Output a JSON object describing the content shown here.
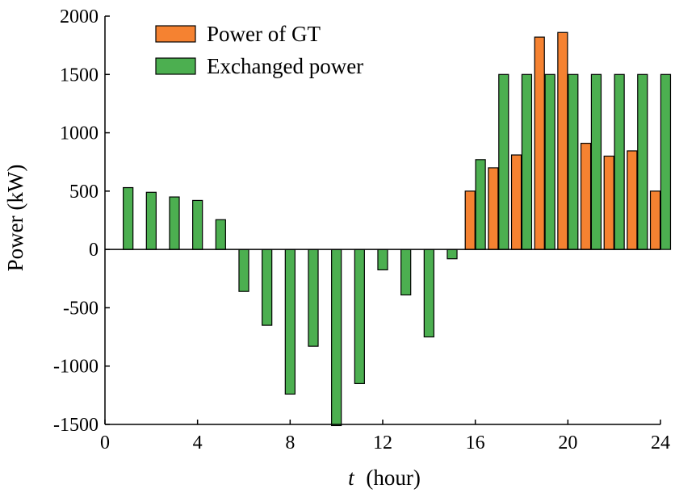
{
  "chart_data": {
    "type": "bar",
    "xlabel_var": "t",
    "xlabel_unit": "(hour)",
    "ylabel": "Power (kW)",
    "xlim": [
      0,
      24
    ],
    "ylim": [
      -1500,
      2000
    ],
    "xticks": [
      0,
      4,
      8,
      12,
      16,
      20,
      24
    ],
    "yticks": [
      -1500,
      -1000,
      -500,
      0,
      500,
      1000,
      1500,
      2000
    ],
    "grid": false,
    "legend_position": "top-left",
    "series": [
      {
        "name": "Power of GT",
        "color": "#f58231",
        "x": [
          16,
          17,
          18,
          19,
          20,
          21,
          22,
          23,
          24
        ],
        "values": [
          500,
          700,
          810,
          1820,
          1860,
          910,
          800,
          845,
          500
        ]
      },
      {
        "name": "Exchanged power",
        "color": "#4caf50",
        "x": [
          1,
          2,
          3,
          4,
          5,
          6,
          7,
          8,
          9,
          10,
          11,
          12,
          13,
          14,
          15,
          16,
          17,
          18,
          19,
          20,
          21,
          22,
          23,
          24
        ],
        "values": [
          530,
          490,
          450,
          420,
          255,
          -360,
          -650,
          -1240,
          -830,
          -1510,
          -1150,
          -175,
          -390,
          -750,
          -80,
          770,
          1500,
          1500,
          1500,
          1500,
          1500,
          1500,
          1500,
          1500
        ]
      }
    ]
  }
}
